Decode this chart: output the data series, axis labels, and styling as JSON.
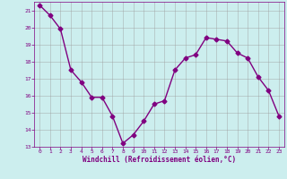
{
  "x": [
    0,
    1,
    2,
    3,
    4,
    5,
    6,
    7,
    8,
    9,
    10,
    11,
    12,
    13,
    14,
    15,
    16,
    17,
    18,
    19,
    20,
    21,
    22,
    23
  ],
  "y": [
    21.3,
    20.7,
    19.9,
    17.5,
    16.8,
    15.9,
    15.9,
    14.8,
    13.2,
    13.7,
    14.5,
    15.5,
    15.7,
    17.5,
    18.2,
    18.4,
    19.4,
    19.3,
    19.2,
    18.5,
    18.2,
    17.1,
    16.3,
    14.8
  ],
  "line_color": "#800080",
  "marker": "D",
  "markersize": 2.5,
  "linewidth": 1.0,
  "bg_color": "#cceeee",
  "grid_color": "#999999",
  "xlabel": "Windchill (Refroidissement éolien,°C)",
  "xlabel_color": "#800080",
  "tick_color": "#800080",
  "label_color": "#800080",
  "ylim": [
    13,
    21.5
  ],
  "xlim": [
    -0.5,
    23.5
  ],
  "yticks": [
    13,
    14,
    15,
    16,
    17,
    18,
    19,
    20,
    21
  ],
  "xticks": [
    0,
    1,
    2,
    3,
    4,
    5,
    6,
    7,
    8,
    9,
    10,
    11,
    12,
    13,
    14,
    15,
    16,
    17,
    18,
    19,
    20,
    21,
    22,
    23
  ],
  "figsize": [
    3.2,
    2.0
  ],
  "dpi": 100
}
